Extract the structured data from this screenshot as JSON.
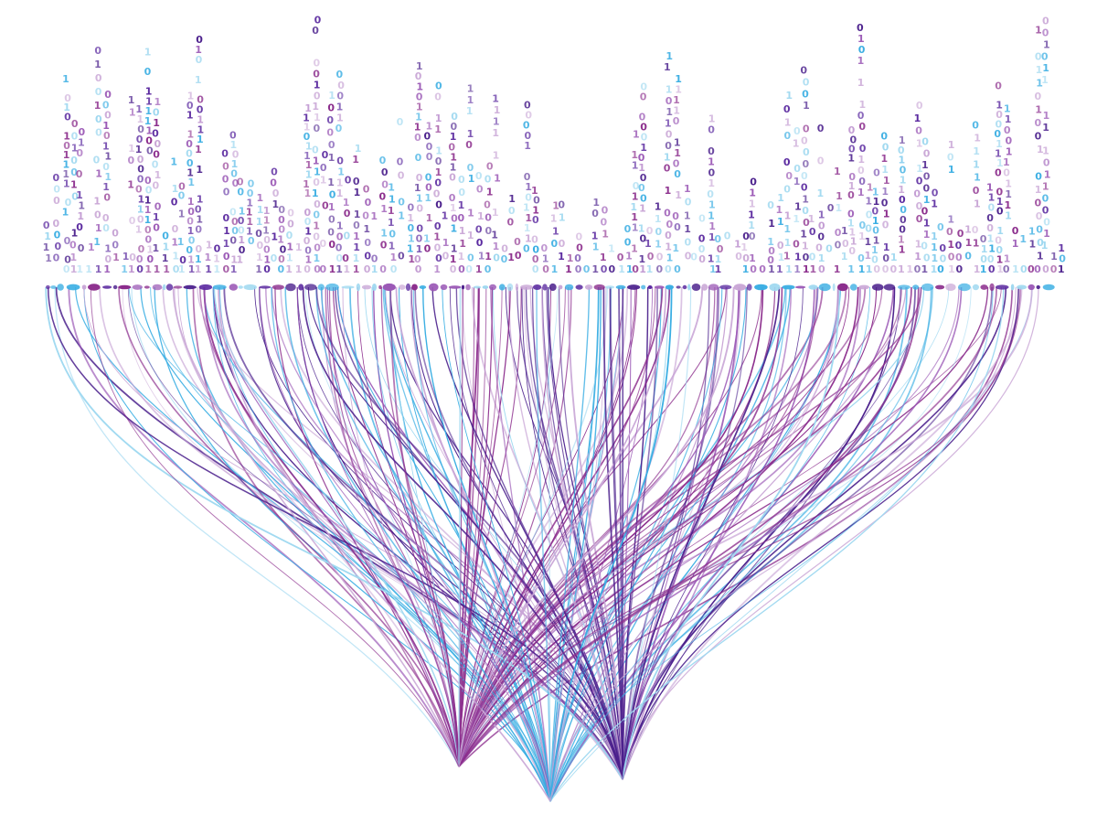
{
  "artwork": {
    "digit_glyphs": [
      "0",
      "1"
    ],
    "palette": {
      "magenta": "#8b2c8c",
      "violet": "#9b59b6",
      "deep_purple": "#4a1f8c",
      "indigo": "#5b2aa0",
      "sky_blue": "#3aaee3",
      "pale_blue": "#9ed8f0",
      "lavender": "#c9a6d6"
    },
    "convergence_points": [
      {
        "color_key": "magenta"
      },
      {
        "color_key": "sky_blue"
      },
      {
        "color_key": "deep_purple"
      }
    ]
  }
}
